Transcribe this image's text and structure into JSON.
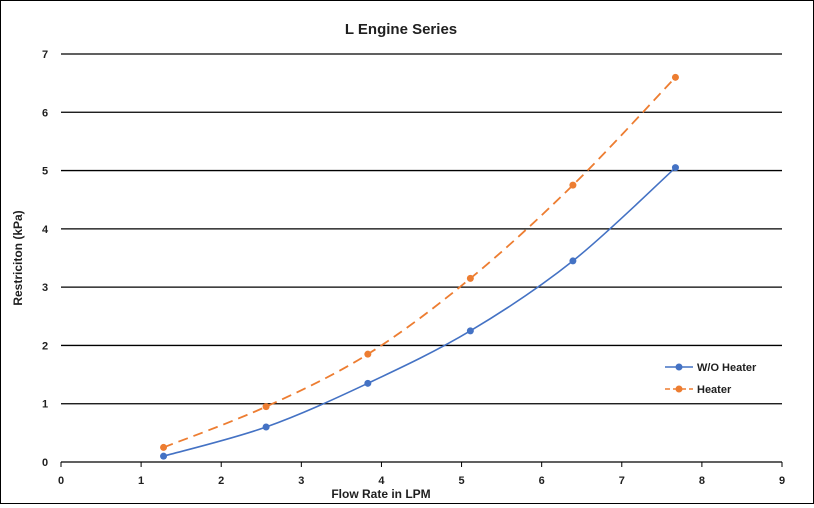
{
  "chart_data": {
    "type": "line",
    "title": "L Engine Series",
    "xlabel": "Flow Rate in LPM",
    "ylabel": "Restriciton (kPa)",
    "xlim": [
      0,
      9
    ],
    "ylim": [
      0,
      7
    ],
    "xticks": [
      0,
      1,
      2,
      3,
      4,
      5,
      6,
      7,
      8,
      9
    ],
    "yticks": [
      0,
      1,
      2,
      3,
      4,
      5,
      6,
      7
    ],
    "grid": "horizontal",
    "legend_position": "right",
    "series": [
      {
        "name": "W/O Heater",
        "color": "#4472c4",
        "dash": "solid",
        "smooth": true,
        "x": [
          1.28,
          2.56,
          3.83,
          5.11,
          6.39,
          7.67
        ],
        "y": [
          0.1,
          0.6,
          1.35,
          2.25,
          3.45,
          5.05
        ]
      },
      {
        "name": "Heater",
        "color": "#ed7d31",
        "dash": "dashed",
        "smooth": true,
        "x": [
          1.28,
          2.56,
          3.83,
          5.11,
          6.39,
          7.67
        ],
        "y": [
          0.25,
          0.95,
          1.85,
          3.15,
          4.75,
          6.6
        ]
      }
    ]
  }
}
